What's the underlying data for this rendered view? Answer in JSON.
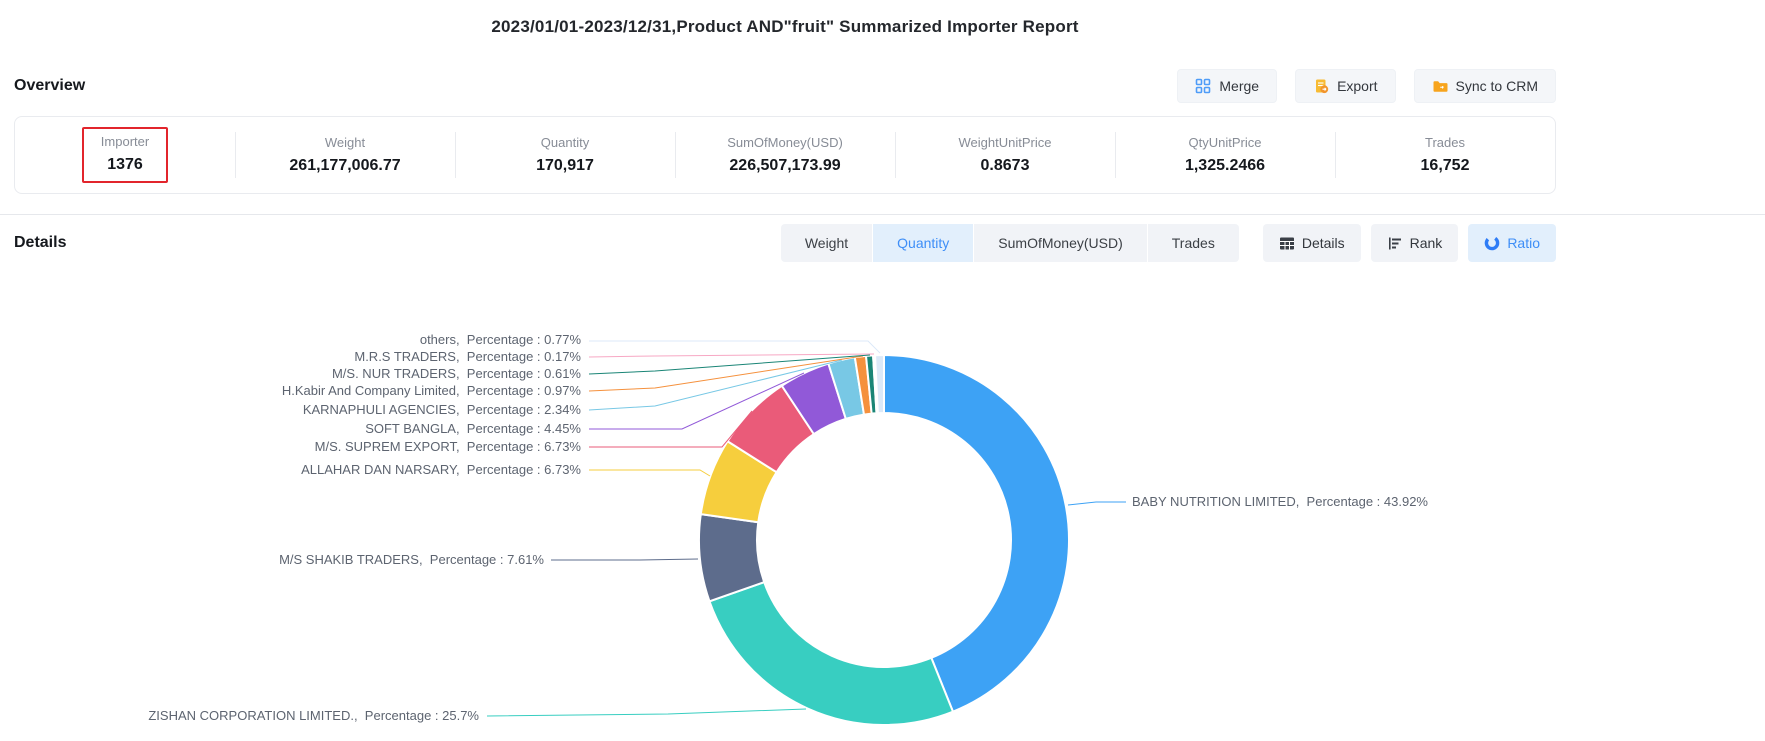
{
  "header": {
    "title": "2023/01/01-2023/12/31,Product AND\"fruit\" Summarized Importer Report"
  },
  "overview": {
    "heading": "Overview",
    "actions": [
      {
        "label": "Merge",
        "icon": "merge-icon"
      },
      {
        "label": "Export",
        "icon": "export-icon"
      },
      {
        "label": "Sync to CRM",
        "icon": "sync-folder-icon"
      }
    ],
    "stats": [
      {
        "label": "Importer",
        "value": "1376",
        "highlighted": true
      },
      {
        "label": "Weight",
        "value": "261,177,006.77",
        "highlighted": false
      },
      {
        "label": "Quantity",
        "value": "170,917",
        "highlighted": false
      },
      {
        "label": "SumOfMoney(USD)",
        "value": "226,507,173.99",
        "highlighted": false
      },
      {
        "label": "WeightUnitPrice",
        "value": "0.8673",
        "highlighted": false
      },
      {
        "label": "QtyUnitPrice",
        "value": "1,325.2466",
        "highlighted": false
      },
      {
        "label": "Trades",
        "value": "16,752",
        "highlighted": false
      }
    ]
  },
  "details": {
    "heading": "Details",
    "metric_tabs": [
      {
        "label": "Weight",
        "active": false
      },
      {
        "label": "Quantity",
        "active": true
      },
      {
        "label": "SumOfMoney(USD)",
        "active": false
      },
      {
        "label": "Trades",
        "active": false
      }
    ],
    "view_buttons": [
      {
        "label": "Details",
        "icon": "table-icon",
        "active": false
      },
      {
        "label": "Rank",
        "icon": "rank-icon",
        "active": false
      },
      {
        "label": "Ratio",
        "icon": "ratio-icon",
        "active": true
      }
    ]
  },
  "chart_data": {
    "type": "pie",
    "subtype": "donut",
    "label_format": "{name},  Percentage : {value}%",
    "legend_position": "none",
    "series": [
      {
        "name": "BABY NUTRITION LIMITED",
        "percentage": "43.92",
        "color": "#3DA2F5"
      },
      {
        "name": "ZISHAN CORPORATION LIMITED.",
        "percentage": "25.7",
        "color": "#38CEC1"
      },
      {
        "name": "M/S SHAKIB TRADERS",
        "percentage": "7.61",
        "color": "#5D6C8C"
      },
      {
        "name": "ALLAHAR DAN NARSARY",
        "percentage": "6.73",
        "color": "#F6CE3D"
      },
      {
        "name": "M/S. SUPREM EXPORT",
        "percentage": "6.73",
        "color": "#EA5B79"
      },
      {
        "name": "SOFT BANGLA",
        "percentage": "4.45",
        "color": "#9159D8"
      },
      {
        "name": "KARNAPHULI AGENCIES",
        "percentage": "2.34",
        "color": "#78C8E5"
      },
      {
        "name": "H.Kabir And Company Limited",
        "percentage": "0.97",
        "color": "#F5913D"
      },
      {
        "name": "M/S. NUR TRADERS",
        "percentage": "0.61",
        "color": "#1A8576"
      },
      {
        "name": "M.R.S TRADERS",
        "percentage": "0.17",
        "color": "#F7A8C4"
      },
      {
        "name": "others",
        "percentage": "0.77",
        "color": "#DCE9F8"
      }
    ]
  },
  "colors": {
    "accent": "#3E8EF7",
    "highlight_box": "#E2252C",
    "tab_active_bg": "#E2EFFC",
    "button_bg": "#F1F3F7",
    "icon_orange": "#F7A41D",
    "icon_yellow": "#F7BB33"
  }
}
